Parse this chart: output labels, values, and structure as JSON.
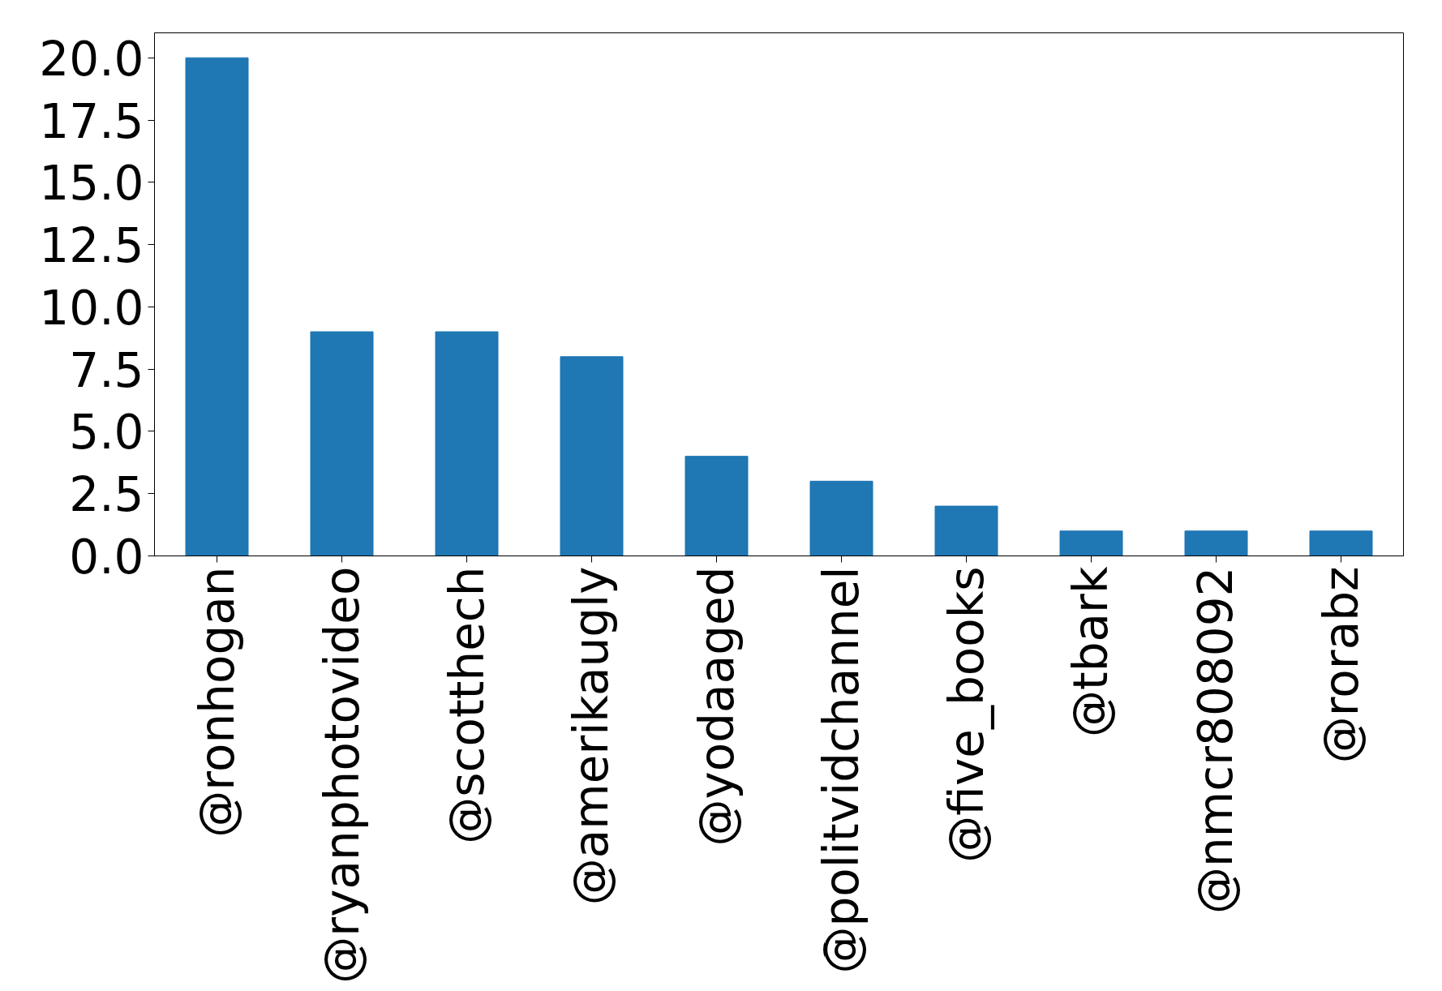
{
  "chart_data": {
    "type": "bar",
    "categories": [
      "@ronhogan",
      "@ryanphotovideo",
      "@scotthech",
      "@amerikaugly",
      "@yodaaged",
      "@politvidchannel",
      "@five_books",
      "@tbark",
      "@nmcr808092",
      "@rorabz"
    ],
    "values": [
      20,
      9,
      9,
      8,
      4,
      3,
      2,
      1,
      1,
      1
    ],
    "color": "#1f77b4",
    "ylim": [
      0,
      21
    ],
    "yticks": [
      {
        "value": 0,
        "label": "0.0"
      },
      2.5,
      {
        "value": 5,
        "label": "5.0"
      },
      7.5,
      {
        "value": 10,
        "label": "10.0"
      },
      12.5,
      {
        "value": 15,
        "label": "15.0"
      },
      17.5,
      {
        "value": 20,
        "label": "20.0"
      }
    ],
    "grid": false
  }
}
